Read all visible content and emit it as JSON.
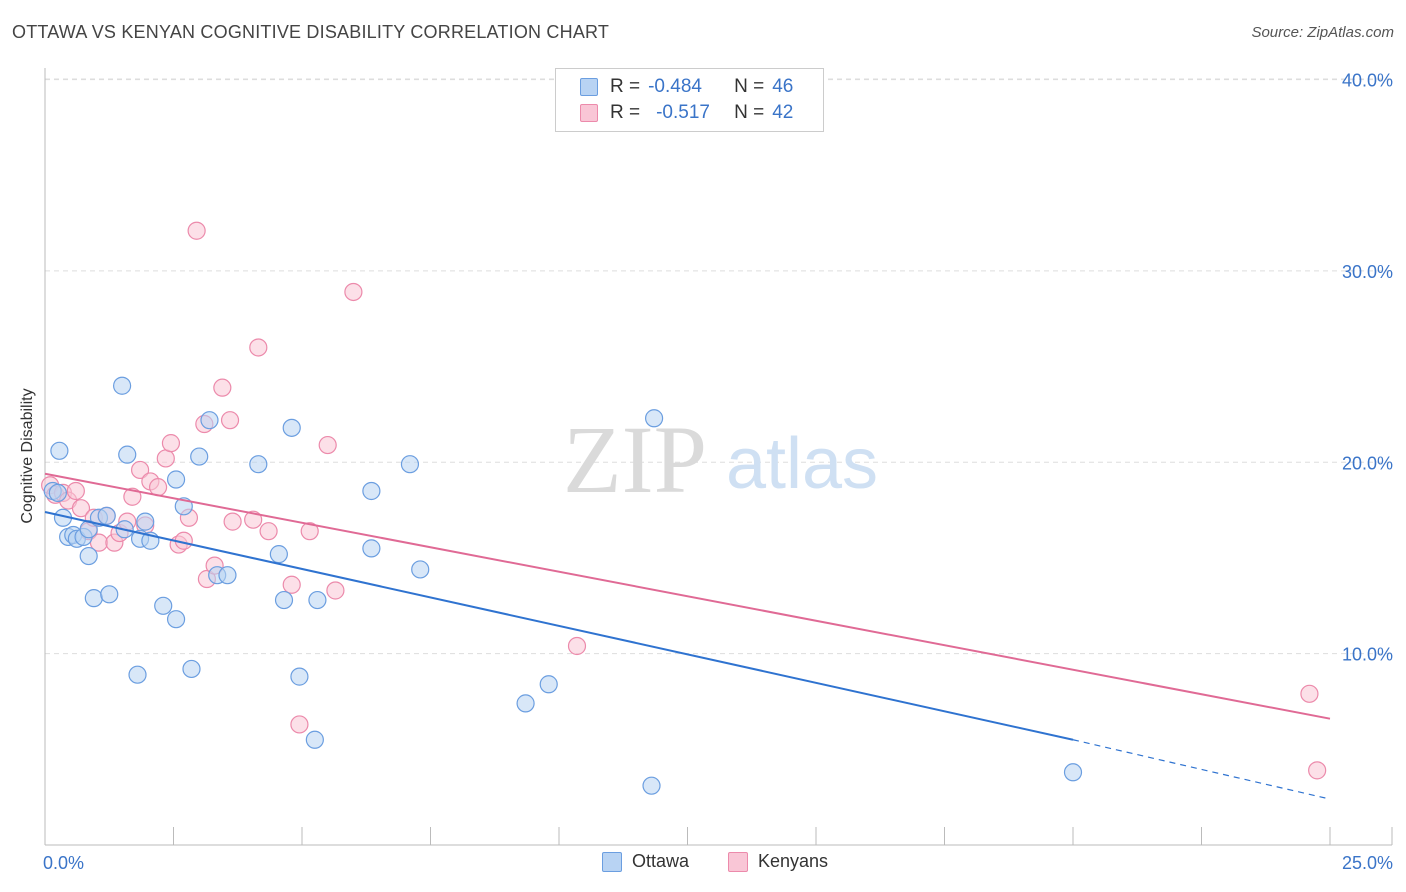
{
  "header": {
    "title": "OTTAWA VS KENYAN COGNITIVE DISABILITY CORRELATION CHART",
    "source": "Source: ZipAtlas.com"
  },
  "watermark": {
    "zip": "ZIP",
    "atlas": "atlas"
  },
  "legend": {
    "rows": [
      {
        "r_label": "R =",
        "r_value": "-0.484",
        "n_label": "N =",
        "n_value": "46"
      },
      {
        "r_label": "R =",
        "r_value": "-0.517",
        "n_label": "N =",
        "n_value": "42"
      }
    ]
  },
  "colors": {
    "ottawa_fill": "#b8d3f3",
    "ottawa_stroke": "#6b9ee0",
    "ottawa_line": "#2f73d0",
    "kenyans_fill": "#f9c6d6",
    "kenyans_stroke": "#ec8aab",
    "kenyans_line": "#e06a95",
    "tick_text": "#3a74c8",
    "grid": "#dddddd"
  },
  "chart_data": {
    "type": "scatter",
    "title": "OTTAWA VS KENYAN COGNITIVE DISABILITY CORRELATION CHART",
    "xlabel": "",
    "ylabel": "Cognitive Disability",
    "xlim": [
      0,
      25
    ],
    "ylim": [
      0,
      40.5
    ],
    "x_tick_labels": [
      "0.0%",
      "25.0%"
    ],
    "y_ticks": [
      10,
      20,
      30,
      40
    ],
    "y_tick_labels": [
      "10.0%",
      "20.0%",
      "30.0%",
      "40.0%"
    ],
    "grid": true,
    "series": [
      {
        "name": "Ottawa",
        "r": -0.484,
        "n": 46,
        "trend": {
          "x0": 0,
          "y0": 17.4,
          "x1": 20,
          "y1": 5.5,
          "dash_to_x": 25,
          "dash_to_y": 2.4
        },
        "points": [
          [
            0.15,
            18.5
          ],
          [
            0.25,
            18.4
          ],
          [
            0.28,
            20.6
          ],
          [
            0.35,
            17.1
          ],
          [
            0.45,
            16.1
          ],
          [
            0.55,
            16.2
          ],
          [
            0.62,
            16.0
          ],
          [
            0.75,
            16.1
          ],
          [
            0.85,
            16.5
          ],
          [
            0.85,
            15.1
          ],
          [
            0.95,
            12.9
          ],
          [
            1.05,
            17.1
          ],
          [
            1.2,
            17.2
          ],
          [
            1.25,
            13.1
          ],
          [
            1.5,
            24.0
          ],
          [
            1.6,
            20.4
          ],
          [
            1.55,
            16.5
          ],
          [
            1.8,
            8.9
          ],
          [
            1.85,
            16.0
          ],
          [
            1.95,
            16.9
          ],
          [
            2.05,
            15.9
          ],
          [
            2.3,
            12.5
          ],
          [
            2.55,
            11.8
          ],
          [
            2.55,
            19.1
          ],
          [
            2.7,
            17.7
          ],
          [
            2.85,
            9.2
          ],
          [
            3.0,
            20.3
          ],
          [
            3.2,
            22.2
          ],
          [
            3.35,
            14.1
          ],
          [
            3.55,
            14.1
          ],
          [
            4.15,
            19.9
          ],
          [
            4.55,
            15.2
          ],
          [
            4.65,
            12.8
          ],
          [
            4.8,
            21.8
          ],
          [
            4.95,
            8.8
          ],
          [
            5.25,
            5.5
          ],
          [
            5.3,
            12.8
          ],
          [
            6.35,
            18.5
          ],
          [
            6.35,
            15.5
          ],
          [
            7.1,
            19.9
          ],
          [
            7.3,
            14.4
          ],
          [
            9.35,
            7.4
          ],
          [
            9.8,
            8.4
          ],
          [
            11.8,
            3.1
          ],
          [
            11.85,
            22.3
          ],
          [
            20.0,
            3.8
          ]
        ]
      },
      {
        "name": "Kenyans",
        "r": -0.517,
        "n": 42,
        "trend": {
          "x0": 0,
          "y0": 19.4,
          "x1": 25,
          "y1": 6.6
        },
        "points": [
          [
            0.1,
            18.8
          ],
          [
            0.2,
            18.3
          ],
          [
            0.35,
            18.4
          ],
          [
            0.45,
            18.0
          ],
          [
            0.6,
            18.5
          ],
          [
            0.7,
            17.6
          ],
          [
            0.85,
            16.4
          ],
          [
            0.95,
            17.1
          ],
          [
            1.05,
            15.8
          ],
          [
            1.2,
            17.2
          ],
          [
            1.35,
            15.8
          ],
          [
            1.45,
            16.3
          ],
          [
            1.6,
            16.9
          ],
          [
            1.7,
            18.2
          ],
          [
            1.85,
            19.6
          ],
          [
            1.95,
            16.7
          ],
          [
            2.05,
            19.0
          ],
          [
            2.2,
            18.7
          ],
          [
            2.35,
            20.2
          ],
          [
            2.45,
            21.0
          ],
          [
            2.6,
            15.7
          ],
          [
            2.7,
            15.9
          ],
          [
            2.8,
            17.1
          ],
          [
            2.95,
            32.1
          ],
          [
            3.1,
            22.0
          ],
          [
            3.15,
            13.9
          ],
          [
            3.3,
            14.6
          ],
          [
            3.45,
            23.9
          ],
          [
            3.6,
            22.2
          ],
          [
            3.65,
            16.9
          ],
          [
            4.05,
            17.0
          ],
          [
            4.15,
            26.0
          ],
          [
            4.35,
            16.4
          ],
          [
            4.8,
            13.6
          ],
          [
            4.95,
            6.3
          ],
          [
            5.15,
            16.4
          ],
          [
            5.5,
            20.9
          ],
          [
            5.65,
            13.3
          ],
          [
            6.0,
            28.9
          ],
          [
            10.35,
            10.4
          ],
          [
            24.6,
            7.9
          ],
          [
            24.75,
            3.9
          ]
        ]
      }
    ]
  },
  "bottom_legend": {
    "items": [
      "Ottawa",
      "Kenyans"
    ]
  }
}
